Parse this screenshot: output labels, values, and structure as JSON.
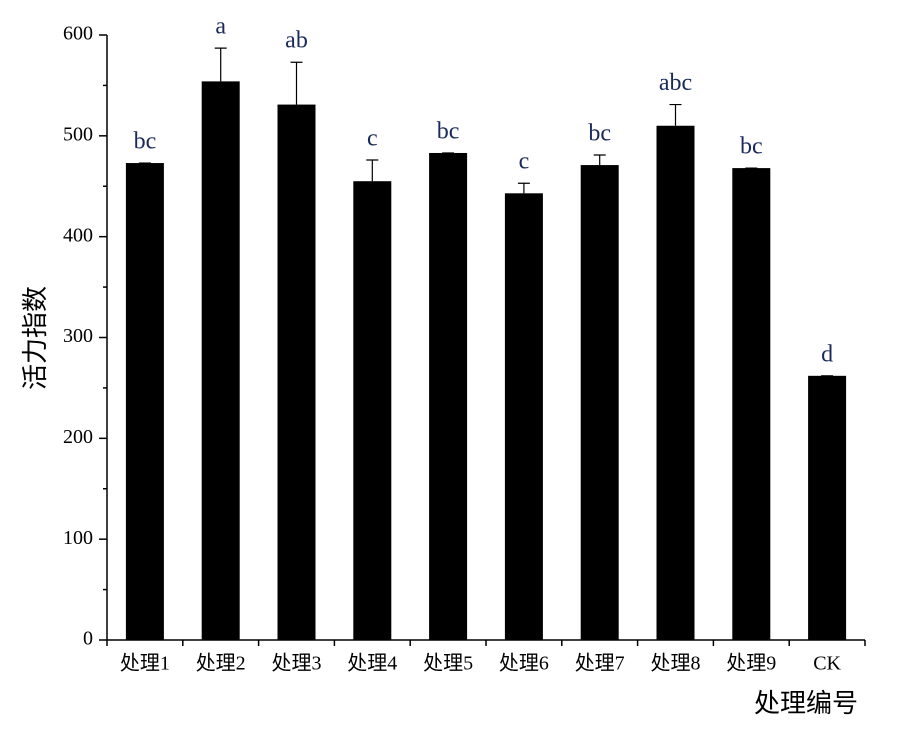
{
  "chart_data": {
    "type": "bar",
    "x_label": "处理编号",
    "y_label": "活力指数",
    "categories": [
      "处理1",
      "处理2",
      "处理3",
      "处理4",
      "处理5",
      "处理6",
      "处理7",
      "处理8",
      "处理9",
      "CK"
    ],
    "values": [
      473,
      554,
      531,
      455,
      483,
      443,
      471,
      510,
      468,
      262
    ],
    "errors": [
      0,
      33,
      42,
      21,
      0,
      10,
      10,
      21,
      0,
      0
    ],
    "labels": [
      "bc",
      "a",
      "ab",
      "c",
      "bc",
      "c",
      "bc",
      "abc",
      "bc",
      "d"
    ],
    "color": "#000000",
    "ylim": [
      0,
      600
    ],
    "yticks": [
      0,
      100,
      200,
      300,
      400,
      500,
      600
    ],
    "yminorticks": [
      50,
      150,
      250,
      350,
      450,
      550
    ]
  }
}
